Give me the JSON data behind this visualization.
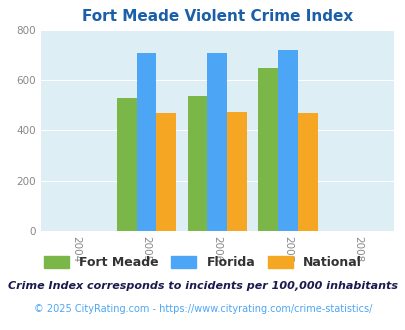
{
  "title": "Fort Meade Violent Crime Index",
  "years": [
    2005,
    2006,
    2007
  ],
  "fort_meade": [
    527,
    535,
    648
  ],
  "florida": [
    708,
    708,
    720
  ],
  "national": [
    469,
    474,
    467
  ],
  "bar_colors": {
    "fort_meade": "#7ab648",
    "florida": "#4da6f5",
    "national": "#f5a623"
  },
  "xlim": [
    2003.5,
    2008.5
  ],
  "ylim": [
    0,
    800
  ],
  "yticks": [
    0,
    200,
    400,
    600,
    800
  ],
  "xticks": [
    2004,
    2005,
    2006,
    2007,
    2008
  ],
  "bg_color": "#ddeef4",
  "legend_labels": [
    "Fort Meade",
    "Florida",
    "National"
  ],
  "footnote1": "Crime Index corresponds to incidents per 100,000 inhabitants",
  "footnote2": "© 2025 CityRating.com - https://www.cityrating.com/crime-statistics/",
  "title_color": "#1a5fa8",
  "footnote1_color": "#1a1a4e",
  "footnote2_color": "#4da6f5",
  "bar_width": 0.28
}
